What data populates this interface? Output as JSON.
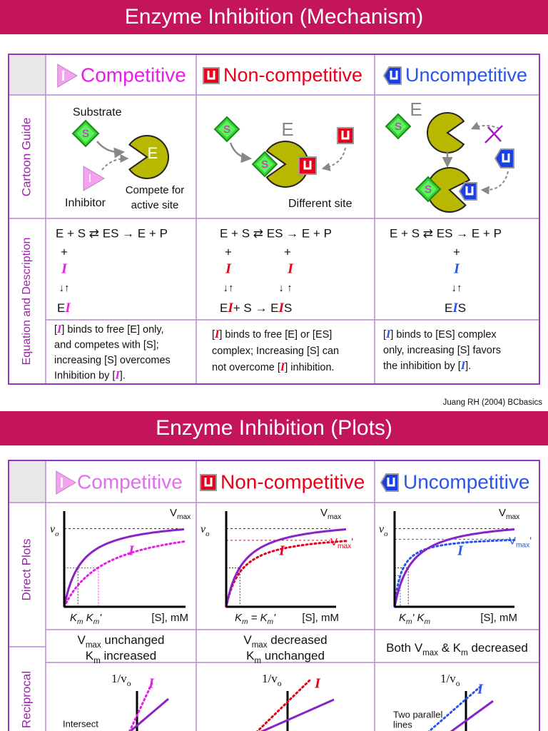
{
  "mechanism": {
    "title": "Enzyme Inhibition (Mechanism)",
    "columns": [
      "Competitive",
      "Non-competitive",
      "Uncompetitive"
    ],
    "row_labels": [
      "Cartoon Guide",
      "Equation and Description"
    ],
    "cartoon": {
      "substrate_symbol": "S",
      "enzyme_symbol": "E",
      "inhibitor_symbol": "I",
      "substrate": "Substrate",
      "inhibitor": "Inhibitor",
      "compete": [
        "Compete for",
        "active site"
      ],
      "different_site": "Different site"
    },
    "equations": [
      {
        "reaction": "E + S ⇄ ES → E + P",
        "plus": "+",
        "inhibitor": "I",
        "arrows": "↓↑",
        "complex": [
          "E",
          "I"
        ]
      },
      {
        "reaction": "E + S ⇄ ES → E + P",
        "plus": "+",
        "inhibitor": "I",
        "arrows": "↓↑",
        "arrows_es": "↓  ↑",
        "complex": [
          "E",
          "I",
          "+ S → E",
          "I",
          "S"
        ]
      },
      {
        "reaction": "E + S ⇄ ES → E + P",
        "plus": "+",
        "inhibitor": "I",
        "arrows": "↓↑",
        "complex": [
          "E",
          "I",
          "S"
        ]
      }
    ],
    "descriptions": [
      [
        [
          "[",
          "I",
          "] binds to free [E] only,"
        ],
        [
          "and competes with [S];"
        ],
        [
          "increasing [S] overcomes"
        ],
        [
          "Inhibition by [",
          "I",
          "]."
        ]
      ],
      [
        [
          "[",
          "I",
          "] binds to free [E] or [ES]"
        ],
        [
          "complex; Increasing [S] can"
        ],
        [
          "not overcome [",
          "I",
          "] inhibition."
        ]
      ],
      [
        [
          "[",
          "I",
          "] binds to [ES] complex"
        ],
        [
          "only, increasing [S] favors"
        ],
        [
          "the inhibition by [",
          "I",
          "]."
        ]
      ]
    ]
  },
  "citation": "Juang RH (2004) BCbasics",
  "plots": {
    "title": "Enzyme Inhibition (Plots)",
    "columns": [
      "Competitive",
      "Non-competitive",
      "Uncompetitive"
    ],
    "row_labels": [
      "Direct Plots",
      "Reciprocal"
    ],
    "direct": [
      {
        "y_label": [
          "v",
          "o"
        ],
        "vmax": [
          "V",
          "max"
        ],
        "inhibitor": "I",
        "km": [
          "K",
          "m",
          " K",
          "m",
          "'"
        ],
        "x_label": "[S], mM"
      },
      {
        "y_label": [
          "v",
          "o"
        ],
        "vmax": [
          "V",
          "max"
        ],
        "vmax_i": [
          "V",
          "max",
          "'"
        ],
        "inhibitor": "I",
        "km": [
          "K",
          "m",
          " = K",
          "m",
          "'"
        ],
        "x_label": "[S], mM"
      },
      {
        "y_label": [
          "v",
          "o"
        ],
        "vmax": [
          "V",
          "max"
        ],
        "vmax_i": [
          "V",
          "max",
          "'"
        ],
        "inhibitor": "I",
        "km": [
          "K",
          "m",
          "' K",
          "m"
        ],
        "x_label": "[S], mM"
      }
    ],
    "summary": [
      [
        [
          "V",
          "max",
          " unchanged"
        ],
        [
          "K",
          "m",
          " increased"
        ]
      ],
      [
        [
          "V",
          "max",
          " decreased"
        ],
        [
          "K",
          "m",
          " unchanged"
        ]
      ],
      [
        [
          "Both V",
          "max",
          " & K",
          "m",
          " decreased"
        ]
      ]
    ],
    "reciprocal": [
      {
        "y_label": [
          "1/v",
          "o"
        ],
        "inhibitor": "I",
        "note": [
          "Intersect"
        ]
      },
      {
        "y_label": [
          "1/v",
          "o"
        ],
        "inhibitor": "I"
      },
      {
        "y_label": [
          "1/v",
          "o"
        ],
        "inhibitor": "I",
        "note": [
          "Two parallel",
          "lines"
        ]
      }
    ]
  }
}
